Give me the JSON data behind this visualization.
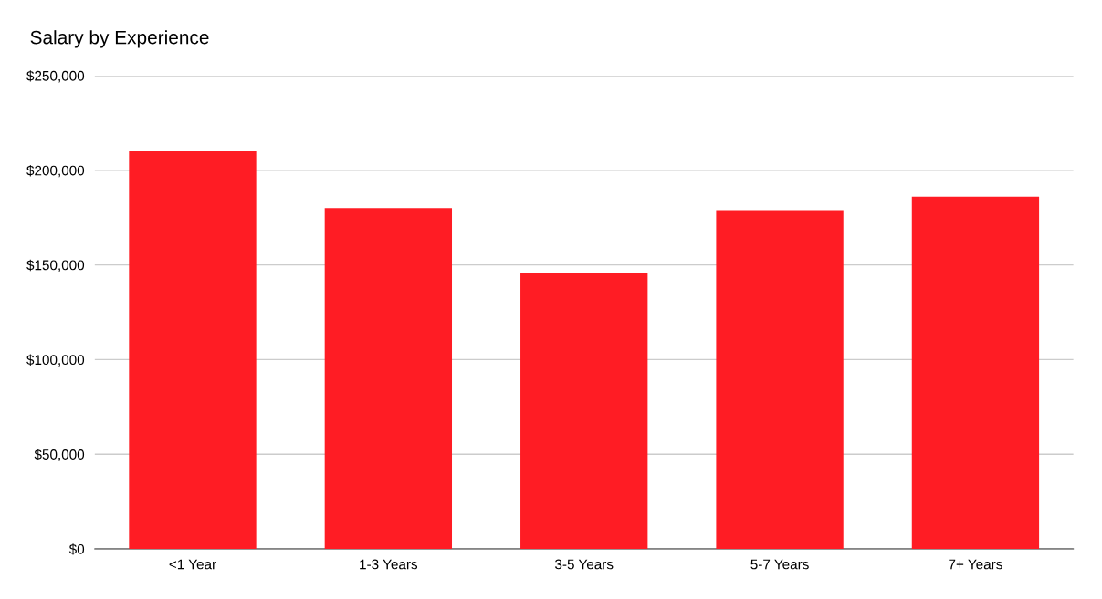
{
  "chart_data": {
    "type": "bar",
    "title": "Salary by Experience",
    "categories": [
      "<1 Year",
      "1-3 Years",
      "3-5 Years",
      "5-7 Years",
      "7+ Years"
    ],
    "values": [
      210000,
      180000,
      146000,
      179000,
      186000
    ],
    "color": "#ff1c24",
    "ylim": [
      0,
      250000
    ],
    "yticks": [
      {
        "value": 0,
        "label": "$0"
      },
      {
        "value": 50000,
        "label": "$50,000"
      },
      {
        "value": 100000,
        "label": "$100,000"
      },
      {
        "value": 150000,
        "label": "$150,000"
      },
      {
        "value": 200000,
        "label": "$200,000"
      },
      {
        "value": 250000,
        "label": "$250,000"
      }
    ],
    "grid": "y",
    "legend": false
  }
}
